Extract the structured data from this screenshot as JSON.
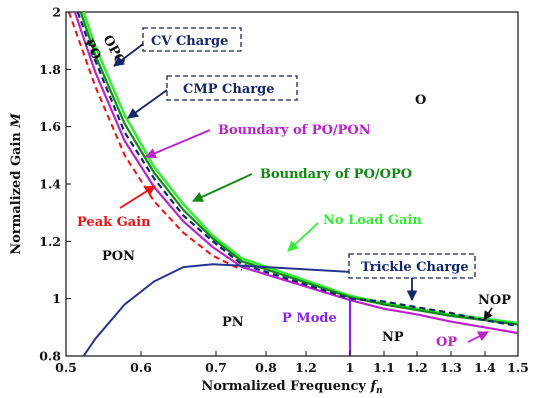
{
  "chart_data": {
    "type": "line",
    "title": "",
    "xlabel": "Normalized Frequency",
    "xlabel_symbol": "f",
    "xlabel_subscript": "n",
    "ylabel": "Normalized Gain",
    "ylabel_symbol": "M",
    "x_ticks_low": [
      "0.5",
      "0.6",
      "0.7",
      "0.8",
      "1.2",
      "1"
    ],
    "x_ticks_high": [
      "1.1",
      "1.2",
      "1.3",
      "1.4",
      "1.5"
    ],
    "y_ticks": [
      "0.8",
      "1",
      "1.2",
      "1.4",
      "1.6",
      "1.8",
      "2"
    ],
    "ylim": [
      0.8,
      2.0
    ],
    "grid": false,
    "regions": {
      "O": "O",
      "OPO": "OPO",
      "PO": "PO",
      "PON": "PON",
      "PN": "PN",
      "NP": "NP",
      "NOP": "NOP",
      "OP": "OP"
    },
    "annotations": {
      "cv_charge": "CV Charge",
      "cmp_charge": "CMP Charge",
      "boundary_po_pon": "Boundary of PO/PON",
      "boundary_po_opo": "Boundary of PO/OPO",
      "no_load_gain": "No Load Gain",
      "peak_gain": "Peak Gain",
      "trickle_charge": "Trickle Charge",
      "p_mode": "P Mode"
    },
    "colors": {
      "no_load_gain": "#33ee33",
      "boundary_po_opo": "#118811",
      "boundary_po_pon": "#bb22cc",
      "peak_gain": "#ee1111",
      "operating_path": "#13256b",
      "lower_curve": "#24348f",
      "p_mode_line": "#8822ee"
    },
    "series": [
      {
        "name": "No Load Gain",
        "x": [
          0.53,
          0.55,
          0.6,
          0.65,
          0.7,
          0.75,
          0.8,
          1.0,
          1.1,
          1.2,
          1.3,
          1.4,
          1.5
        ],
        "y": [
          2.0,
          1.88,
          1.64,
          1.46,
          1.33,
          1.22,
          1.14,
          1.01,
          0.985,
          0.965,
          0.945,
          0.93,
          0.915
        ]
      },
      {
        "name": "Boundary of PO/OPO",
        "x": [
          0.525,
          0.55,
          0.6,
          0.65,
          0.7,
          0.75,
          0.8,
          1.0,
          1.1,
          1.2,
          1.3,
          1.4,
          1.5
        ],
        "y": [
          2.0,
          1.85,
          1.61,
          1.44,
          1.31,
          1.21,
          1.13,
          1.005,
          0.98,
          0.96,
          0.94,
          0.925,
          0.91
        ]
      },
      {
        "name": "Boundary of PO/PON",
        "x": [
          0.515,
          0.55,
          0.6,
          0.65,
          0.7,
          0.75,
          0.8,
          1.0,
          1.1,
          1.2,
          1.3,
          1.4,
          1.5
        ],
        "y": [
          2.0,
          1.79,
          1.55,
          1.39,
          1.27,
          1.18,
          1.11,
          0.995,
          0.965,
          0.945,
          0.92,
          0.9,
          0.88
        ]
      },
      {
        "name": "Peak Gain",
        "x": [
          0.505,
          0.55,
          0.6,
          0.65,
          0.7,
          0.75,
          0.8
        ],
        "y": [
          2.0,
          1.74,
          1.5,
          1.34,
          1.23,
          1.15,
          1.1
        ]
      },
      {
        "name": "CMP Charge",
        "x": [
          0.52,
          0.55,
          0.6,
          0.65,
          0.7,
          0.75,
          0.8,
          1.0
        ],
        "y": [
          2.0,
          1.83,
          1.58,
          1.42,
          1.29,
          1.2,
          1.12,
          1.0
        ]
      },
      {
        "name": "Trickle Charge",
        "x": [
          1.0,
          1.1,
          1.2,
          1.3,
          1.4,
          1.5
        ],
        "y": [
          1.0,
          0.99,
          0.97,
          0.95,
          0.925,
          0.905
        ]
      },
      {
        "name": "",
        "x": [
          0.53,
          0.55,
          0.6,
          0.65,
          0.7,
          0.75,
          0.8,
          1.2
        ],
        "y": [
          0.8,
          0.86,
          0.98,
          1.06,
          1.11,
          1.12,
          1.115,
          1.08
        ]
      }
    ],
    "p_mode_x": 1.0
  }
}
